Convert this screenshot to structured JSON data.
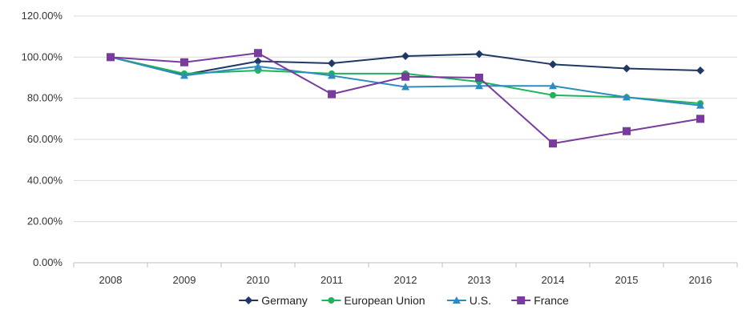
{
  "chart_data": {
    "type": "line",
    "title": "",
    "xlabel": "",
    "ylabel": "",
    "x": [
      "2008",
      "2009",
      "2010",
      "2011",
      "2012",
      "2013",
      "2014",
      "2015",
      "2016"
    ],
    "ylim": [
      0,
      120
    ],
    "y_ticks": [
      "0.00%",
      "20.00%",
      "40.00%",
      "60.00%",
      "80.00%",
      "100.00%",
      "120.00%"
    ],
    "grid": true,
    "legend_position": "bottom",
    "series": [
      {
        "name": "Germany",
        "color": "#1f3864",
        "marker": "diamond",
        "values": [
          100,
          91.5,
          98,
          97,
          100.5,
          101.5,
          96.5,
          94.5,
          93.5
        ]
      },
      {
        "name": "European Union",
        "color": "#1fb35b",
        "marker": "circle",
        "values": [
          100,
          92,
          93.5,
          92,
          92,
          88,
          81.5,
          80.5,
          77.5
        ]
      },
      {
        "name": "U.S.",
        "color": "#2e8bc0",
        "marker": "triangle",
        "values": [
          100,
          91,
          95.5,
          91,
          85.5,
          86,
          86,
          80.5,
          76.5
        ]
      },
      {
        "name": "France",
        "color": "#7a3b9e",
        "marker": "square",
        "values": [
          100,
          97.5,
          102,
          82,
          90.5,
          90,
          58,
          64,
          70
        ]
      }
    ]
  }
}
